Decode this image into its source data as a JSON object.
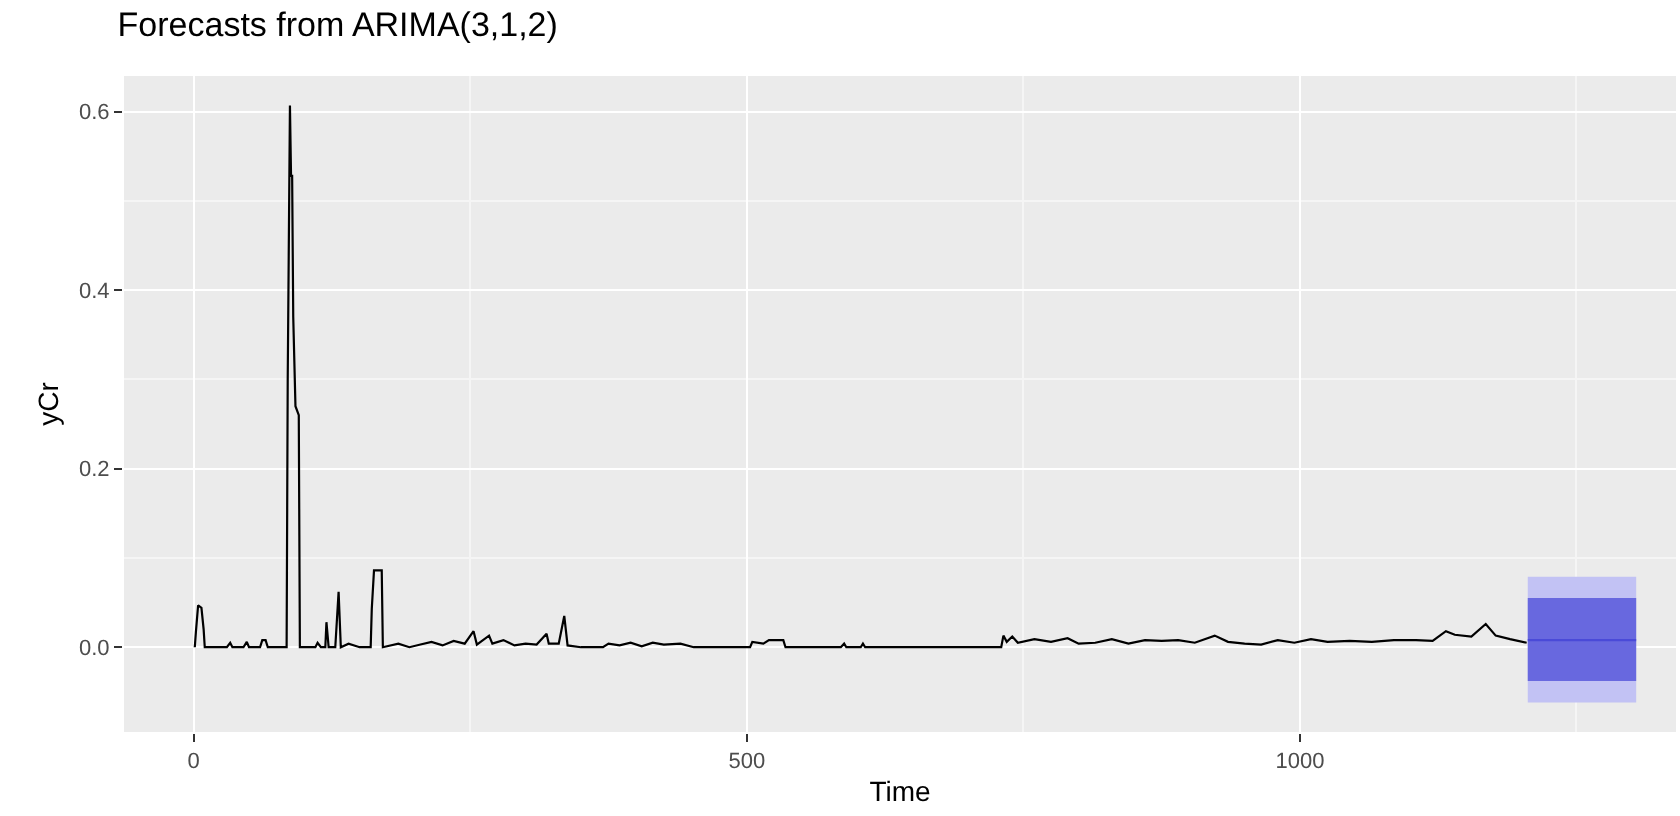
{
  "chart_data": {
    "type": "line",
    "title": "Forecasts from ARIMA(3,1,2)",
    "xlabel": "Time",
    "ylabel": "yCr",
    "xlim": [
      -63,
      1340
    ],
    "ylim": [
      -0.095,
      0.64
    ],
    "xticks": [
      0,
      500,
      1000
    ],
    "yticks": [
      {
        "value": 0,
        "label": "0.0"
      },
      {
        "value": 0.2,
        "label": "0.2"
      },
      {
        "value": 0.4,
        "label": "0.4"
      },
      {
        "value": 0.6,
        "label": "0.6"
      }
    ],
    "grid": true,
    "marker": "none",
    "line_style": "solid",
    "series": [
      {
        "color": "#000000",
        "x": [
          1,
          2,
          4,
          7,
          9,
          10,
          30,
          33,
          35,
          45,
          48,
          50,
          60,
          62,
          65,
          67,
          84,
          85,
          87,
          88,
          89,
          90,
          92,
          95,
          96,
          110,
          112,
          115,
          119,
          120,
          122,
          128,
          131,
          133,
          140,
          150,
          160,
          161,
          163,
          170,
          171,
          185,
          195,
          205,
          215,
          225,
          235,
          245,
          253,
          256,
          267,
          270,
          280,
          290,
          300,
          310,
          319,
          321,
          330,
          335,
          338,
          350,
          370,
          375,
          385,
          395,
          405,
          415,
          425,
          440,
          452,
          503,
          505,
          515,
          520,
          533,
          535,
          585,
          588,
          590,
          603,
          605,
          607,
          730,
          732,
          735,
          740,
          745,
          760,
          775,
          790,
          800,
          815,
          830,
          845,
          860,
          875,
          890,
          905,
          923,
          935,
          950,
          965,
          980,
          995,
          1010,
          1025,
          1045,
          1065,
          1085,
          1105,
          1120,
          1132,
          1140,
          1155,
          1168,
          1177,
          1190,
          1205
        ],
        "values": [
          0,
          0.017,
          0.047,
          0.044,
          0.02,
          0,
          0,
          0.005,
          0,
          0,
          0.006,
          0,
          0,
          0.008,
          0.008,
          0,
          0,
          0.3,
          0.607,
          0.528,
          0.528,
          0.37,
          0.27,
          0.26,
          0,
          0,
          0.005,
          0,
          0,
          0.028,
          0,
          0,
          0.062,
          0,
          0.004,
          0,
          0,
          0.043,
          0.086,
          0.086,
          0,
          0.004,
          0,
          0.003,
          0.006,
          0.002,
          0.007,
          0.004,
          0.018,
          0.003,
          0.013,
          0.004,
          0.008,
          0.002,
          0.004,
          0.003,
          0.015,
          0.004,
          0.004,
          0.035,
          0.002,
          0,
          0,
          0.004,
          0.002,
          0.005,
          0.001,
          0.005,
          0.003,
          0.004,
          0,
          0,
          0.006,
          0.004,
          0.008,
          0.008,
          0,
          0,
          0.004,
          0,
          0,
          0.004,
          0,
          0,
          0.013,
          0.006,
          0.012,
          0.005,
          0.009,
          0.006,
          0.01,
          0.004,
          0.005,
          0.009,
          0.004,
          0.008,
          0.007,
          0.008,
          0.005,
          0.013,
          0.006,
          0.004,
          0.003,
          0.008,
          0.005,
          0.009,
          0.006,
          0.007,
          0.006,
          0.008,
          0.008,
          0.007,
          0.018,
          0.014,
          0.012,
          0.026,
          0.013,
          0.009,
          0.005
        ]
      },
      {
        "color": "#c2c2f4",
        "x": [
          1206,
          1304
        ],
        "values": [
          null,
          null
        ],
        "lower": [
          -0.062,
          -0.062
        ],
        "upper": [
          0.079,
          0.079
        ]
      },
      {
        "color": "#4a4ad8",
        "x": [
          1206,
          1304
        ],
        "values": [
          0.008,
          0.008
        ],
        "lower": [
          -0.038,
          -0.038
        ],
        "upper": [
          0.055,
          0.055
        ]
      }
    ]
  }
}
